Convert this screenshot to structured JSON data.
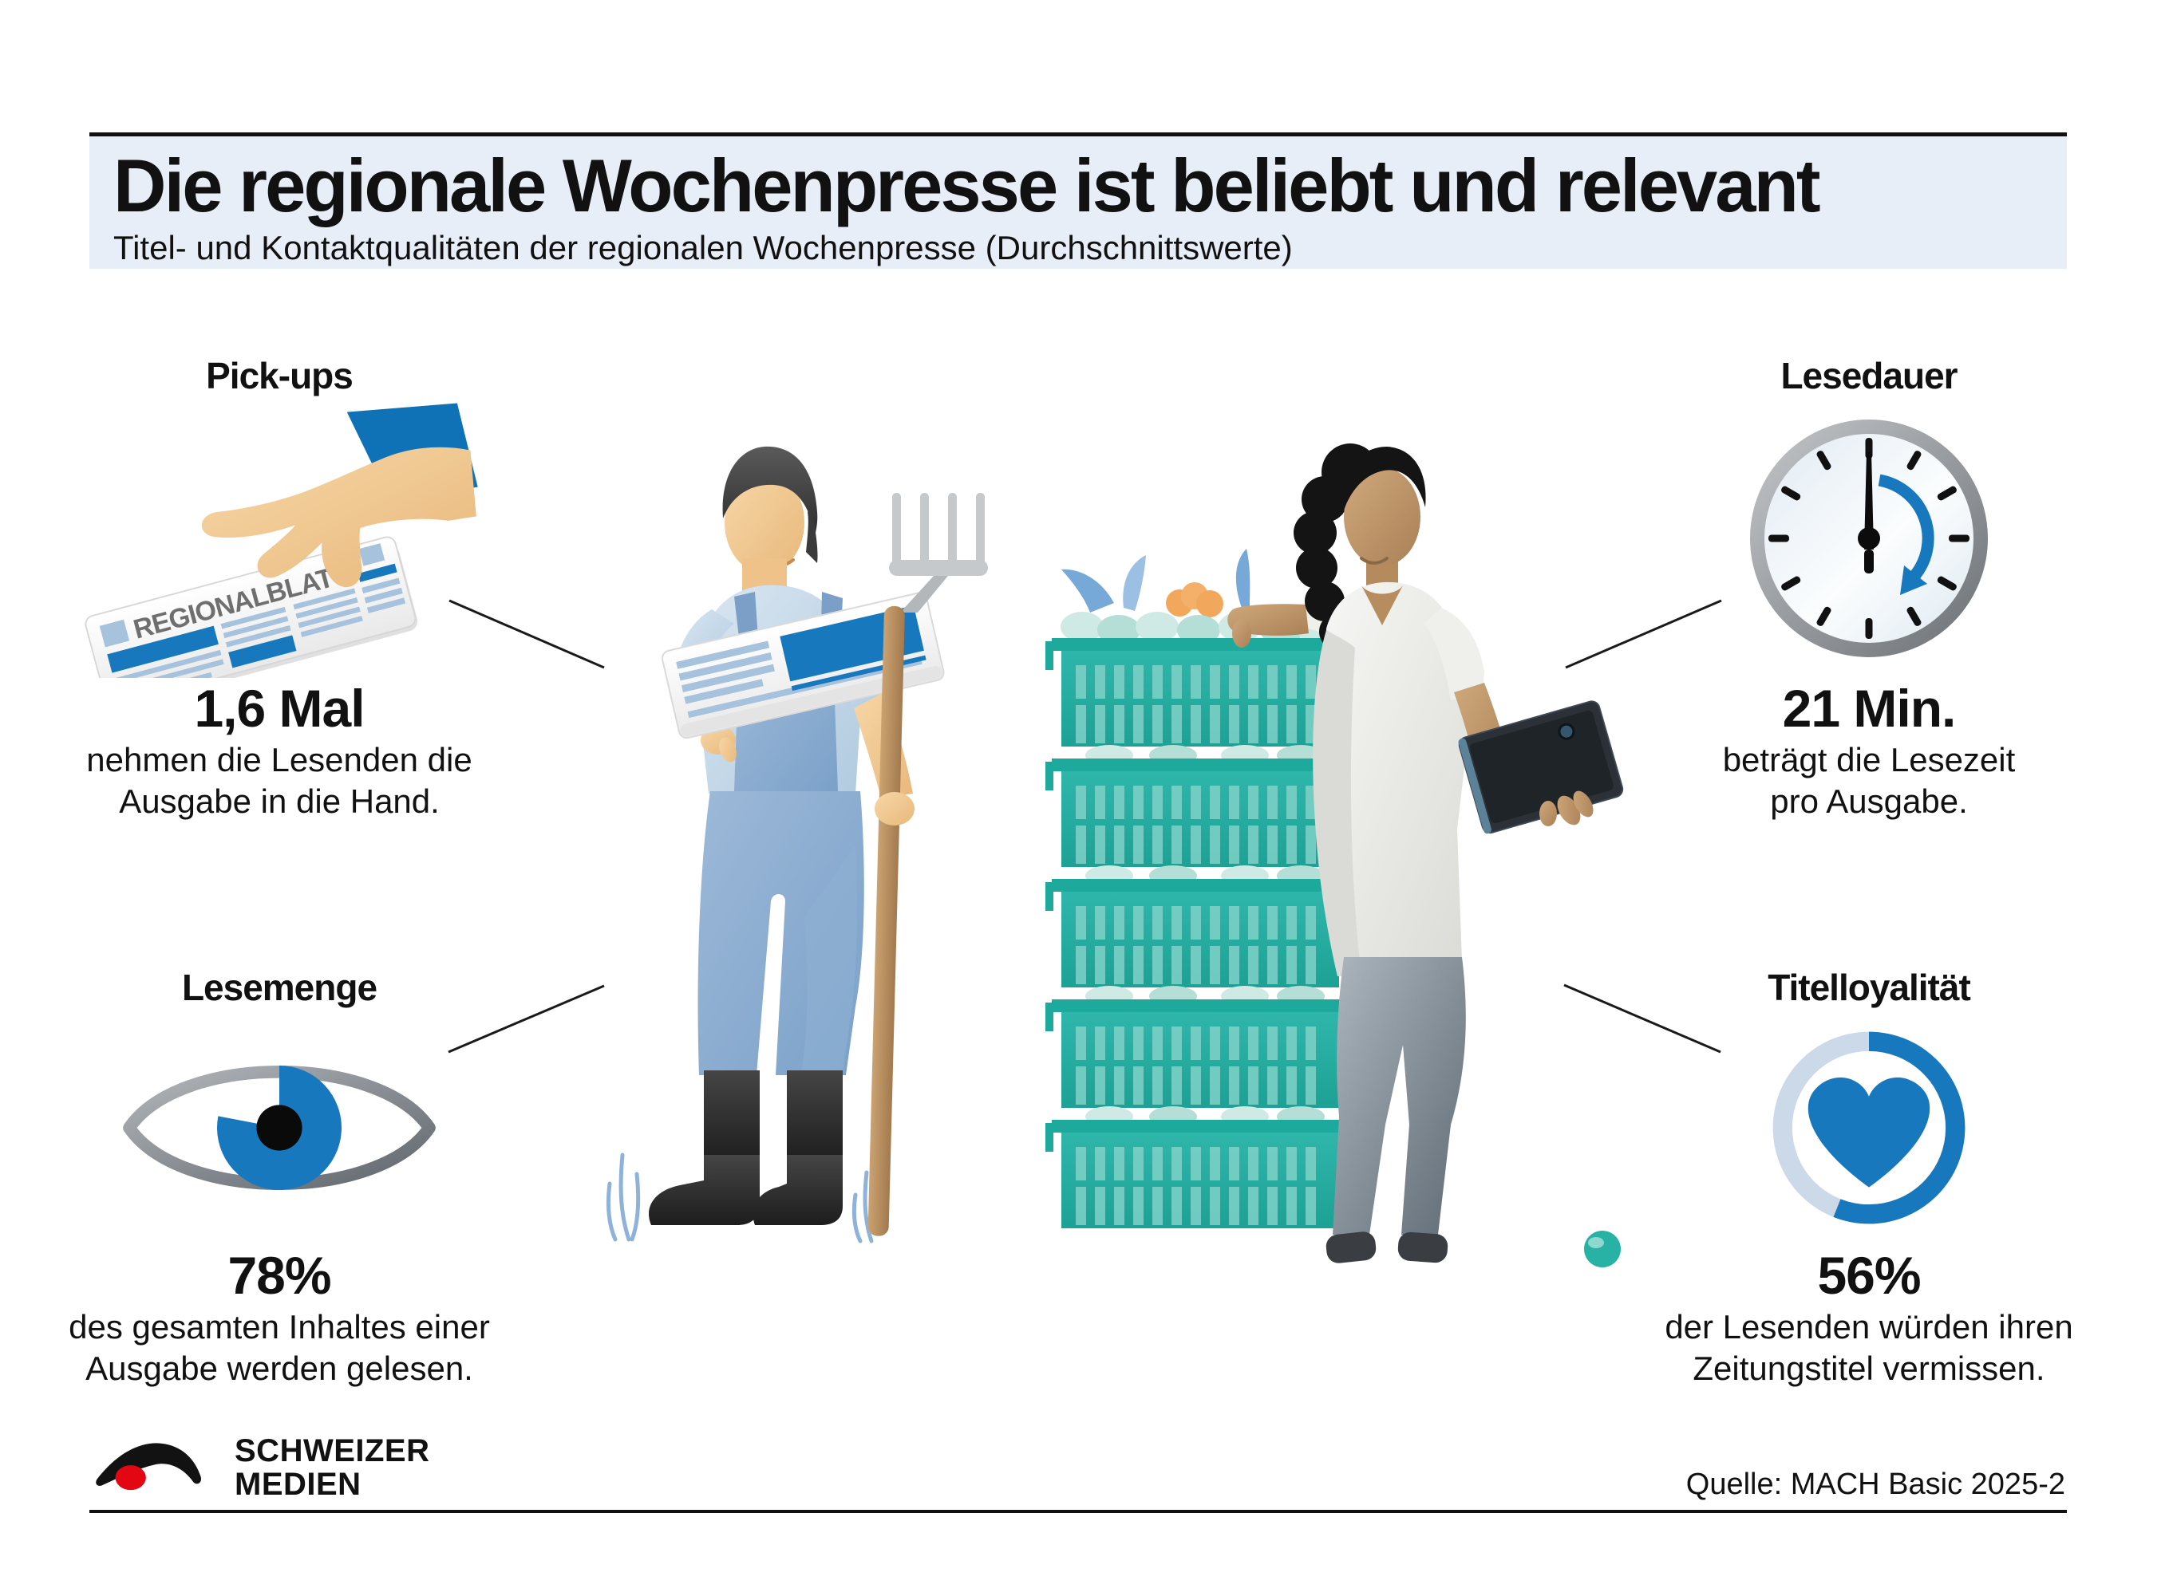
{
  "header": {
    "title": "Die regionale Wochenpresse ist beliebt und relevant",
    "subtitle": "Titel- und Kontaktqualitäten der regionalen Wochenpresse (Durchschnittswerte)"
  },
  "stats": [
    {
      "label": "Pick-ups",
      "icon": "hand-picking-newspaper-icon",
      "newspaper_masthead": "REGIONALBLATT",
      "value": "1,6 Mal",
      "description": [
        "nehmen die Lesenden die",
        "Ausgabe in die Hand."
      ]
    },
    {
      "label": "Lesedauer",
      "icon": "clock-icon",
      "value": "21 Min.",
      "description": [
        "beträgt die Lesezeit",
        "pro Ausgabe."
      ]
    },
    {
      "label": "Lesemenge",
      "icon": "eye-icon",
      "value": "78%",
      "percent": 78,
      "description": [
        "des gesamten Inhaltes einer",
        "Ausgabe werden gelesen."
      ]
    },
    {
      "label": "Titelloyalität",
      "icon": "heart-in-ring-icon",
      "value": "56%",
      "percent": 56,
      "description": [
        "der Lesenden würden ihren",
        "Zeitungstitel vermissen."
      ]
    }
  ],
  "illustration": {
    "scene": "farmer-with-newspaper-and-pitchfork, produce-crates, woman-with-tablet"
  },
  "footer": {
    "logo_line1": "SCHWEIZER",
    "logo_line2": "MEDIEN",
    "source": "Quelle: MACH Basic 2025-2"
  },
  "colors": {
    "accent_blue": "#1778bd",
    "light_blue": "#a6c2dc",
    "header_band": "#e8eef7",
    "teal": "#28b1a5",
    "teal_light": "#7fd1c8",
    "ring_track": "#ccd9e8",
    "logo_red": "#e30613",
    "text_black": "#111111"
  }
}
